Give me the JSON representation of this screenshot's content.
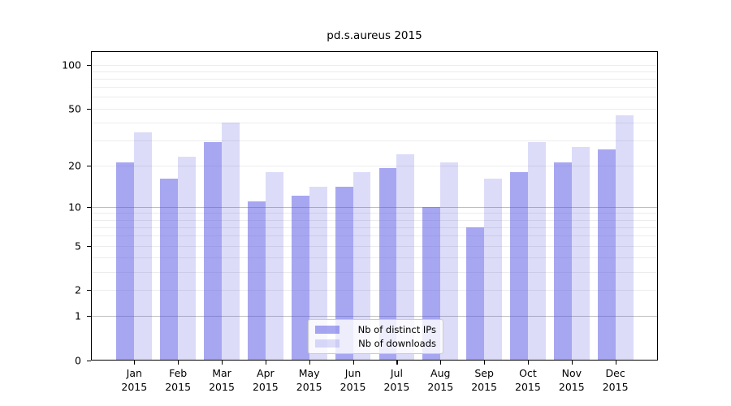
{
  "title": "pd.s.aureus 2015",
  "colors": {
    "bar_ips": "rgba(79,79,227,0.5)",
    "bar_ips_flat": "#a6a6f2",
    "bar_downloads": "rgba(79,79,227,0.2)",
    "bar_downloads_flat": "#dcdcf9",
    "grid_minor": "#ececec",
    "grid_major": "#bfbfbf",
    "axis": "#000000",
    "legend_border": "#cccccc"
  },
  "chart_data": {
    "type": "bar",
    "title": "pd.s.aureus 2015",
    "categories": [
      "Jan 2015",
      "Feb 2015",
      "Mar 2015",
      "Apr 2015",
      "May 2015",
      "Jun 2015",
      "Jul 2015",
      "Aug 2015",
      "Sep 2015",
      "Oct 2015",
      "Nov 2015",
      "Dec 2015"
    ],
    "series": [
      {
        "name": "Nb of distinct IPs",
        "values": [
          21,
          16,
          29,
          11,
          12,
          14,
          19,
          10,
          7,
          18,
          21,
          26
        ]
      },
      {
        "name": "Nb of downloads",
        "values": [
          34,
          23,
          40,
          18,
          14,
          18,
          24,
          21,
          16,
          29,
          27,
          45
        ]
      }
    ],
    "xlabel": "",
    "ylabel": "",
    "yscale": "log1p",
    "yticks": [
      100,
      50,
      20,
      10,
      5,
      2,
      1,
      0
    ],
    "minor_grid_values": [
      1,
      2,
      3,
      4,
      5,
      6,
      7,
      8,
      9,
      10,
      20,
      30,
      40,
      50,
      60,
      70,
      80,
      90,
      100
    ],
    "major_grid_values": [
      1,
      10
    ],
    "ylim": [
      0,
      120
    ],
    "grid": true,
    "legend_position": "lower center"
  }
}
